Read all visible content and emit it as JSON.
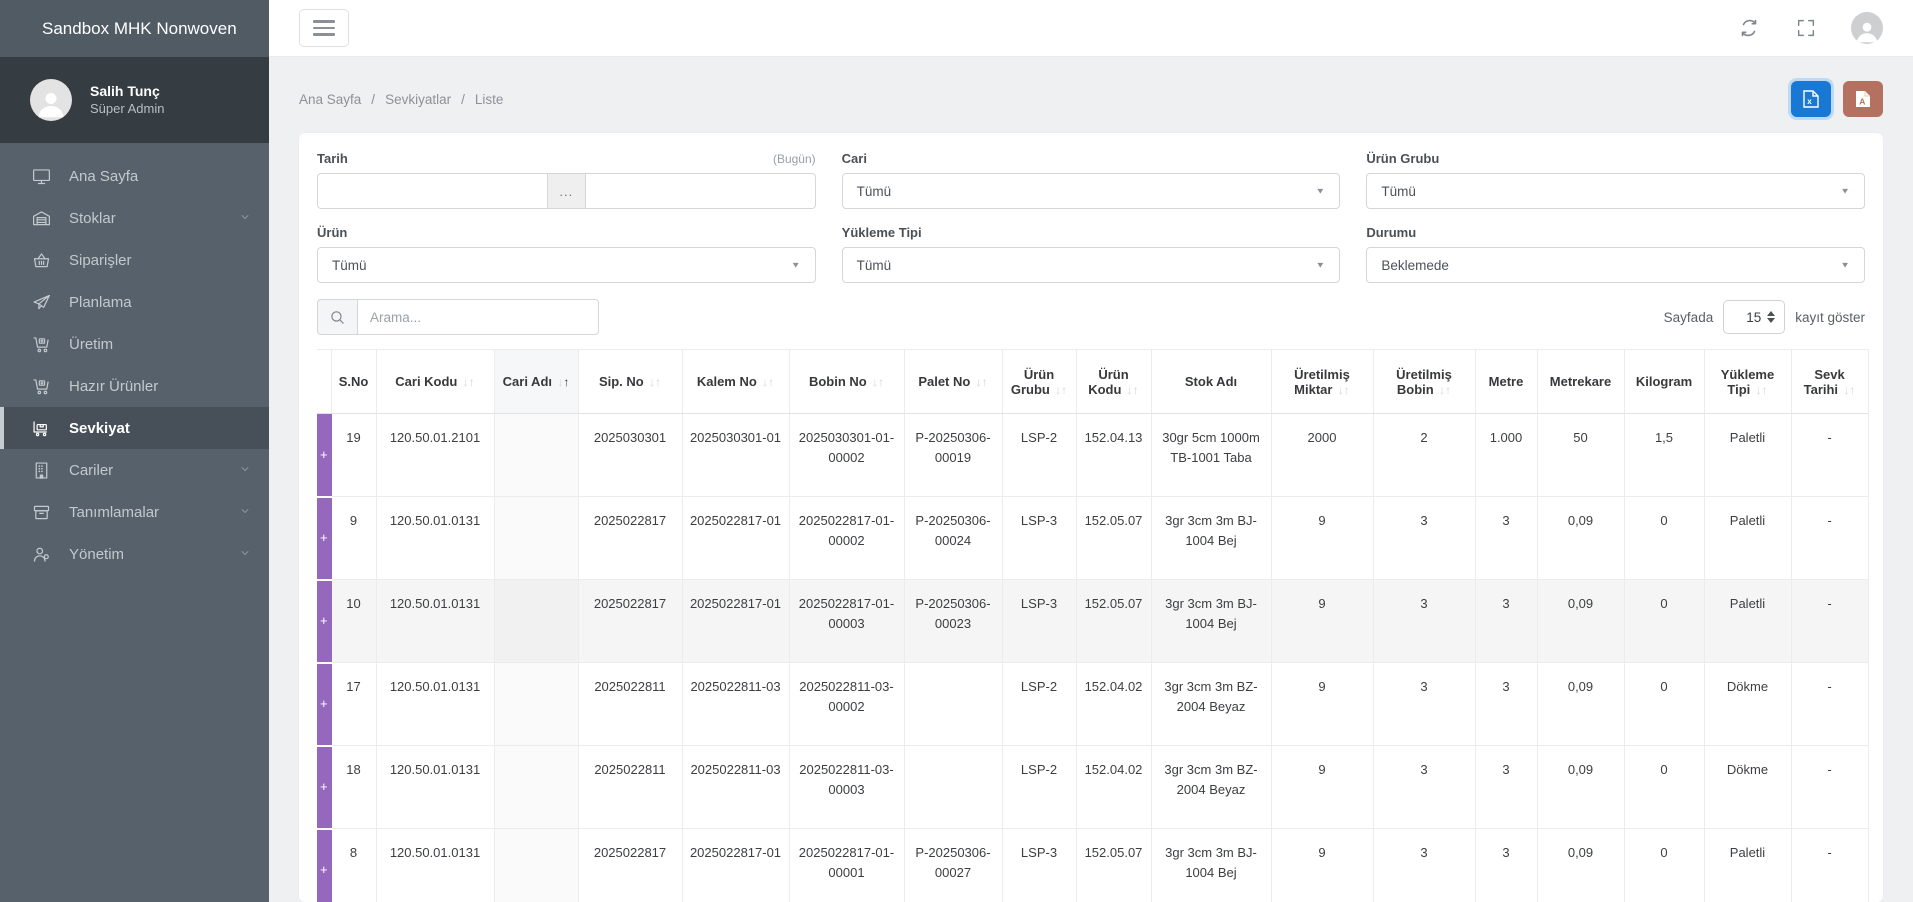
{
  "app": {
    "title": "Sandbox MHK Nonwoven"
  },
  "user": {
    "name": "Salih Tunç",
    "role": "Süper Admin"
  },
  "sidebar": {
    "items": [
      {
        "label": "Ana Sayfa",
        "icon": "monitor-icon",
        "has_children": false,
        "active": false
      },
      {
        "label": "Stoklar",
        "icon": "warehouse-icon",
        "has_children": true,
        "active": false
      },
      {
        "label": "Siparişler",
        "icon": "basket-icon",
        "has_children": false,
        "active": false
      },
      {
        "label": "Planlama",
        "icon": "paper-plane-icon",
        "has_children": false,
        "active": false
      },
      {
        "label": "Üretim",
        "icon": "cart-plus-icon",
        "has_children": false,
        "active": false
      },
      {
        "label": "Hazır Ürünler",
        "icon": "cart-plus-icon",
        "has_children": false,
        "active": false
      },
      {
        "label": "Sevkiyat",
        "icon": "trolley-icon",
        "has_children": false,
        "active": true
      },
      {
        "label": "Cariler",
        "icon": "building-icon",
        "has_children": true,
        "active": false
      },
      {
        "label": "Tanımlamalar",
        "icon": "definitions-icon",
        "has_children": true,
        "active": false
      },
      {
        "label": "Yönetim",
        "icon": "management-icon",
        "has_children": true,
        "active": false
      }
    ]
  },
  "topbar": {
    "icons": [
      "recycle-icon",
      "fullscreen-icon",
      "avatar"
    ]
  },
  "breadcrumb": {
    "items": [
      "Ana Sayfa",
      "Sevkiyatlar",
      "Liste"
    ],
    "separator": "/"
  },
  "export_buttons": {
    "excel_icon": "file-excel-icon",
    "pdf_icon": "file-pdf-icon"
  },
  "filters": {
    "tarih": {
      "label": "Tarih",
      "hint": "(Bugün)",
      "start_value": "",
      "end_value": "",
      "range_button": "..."
    },
    "cari": {
      "label": "Cari",
      "value": "Tümü"
    },
    "urun_grubu": {
      "label": "Ürün Grubu",
      "value": "Tümü"
    },
    "urun": {
      "label": "Ürün",
      "value": "Tümü"
    },
    "yukleme_tipi": {
      "label": "Yükleme Tipi",
      "value": "Tümü"
    },
    "durumu": {
      "label": "Durumu",
      "value": "Beklemede"
    }
  },
  "search": {
    "placeholder": "Arama..."
  },
  "page_size": {
    "prefix": "Sayfada",
    "value": "15",
    "suffix": "kayıt göster"
  },
  "table": {
    "expand_label": "+",
    "accent_color": "#9568bd",
    "columns": [
      {
        "key": "sno",
        "label": "S.No",
        "sortable": false
      },
      {
        "key": "cari_kodu",
        "label": "Cari Kodu",
        "sortable": true
      },
      {
        "key": "cari_adi",
        "label": "Cari Adı",
        "sortable": true,
        "sorted": true,
        "shaded": true
      },
      {
        "key": "sip_no",
        "label": "Sip. No",
        "sortable": true
      },
      {
        "key": "kalem_no",
        "label": "Kalem No",
        "sortable": true
      },
      {
        "key": "bobin_no",
        "label": "Bobin No",
        "sortable": true
      },
      {
        "key": "palet_no",
        "label": "Palet No",
        "sortable": true
      },
      {
        "key": "urun_grubu",
        "label": "Ürün Grubu",
        "sortable": true
      },
      {
        "key": "urun_kodu",
        "label": "Ürün Kodu",
        "sortable": true
      },
      {
        "key": "stok_adi",
        "label": "Stok Adı",
        "sortable": false
      },
      {
        "key": "uretilmis_miktar",
        "label": "Üretilmiş Miktar",
        "sortable": true
      },
      {
        "key": "uretilmis_bobin",
        "label": "Üretilmiş Bobin",
        "sortable": true
      },
      {
        "key": "metre",
        "label": "Metre",
        "sortable": false
      },
      {
        "key": "metrekare",
        "label": "Metrekare",
        "sortable": false
      },
      {
        "key": "kilogram",
        "label": "Kilogram",
        "sortable": false
      },
      {
        "key": "yukleme_tipi",
        "label": "Yükleme Tipi",
        "sortable": true
      },
      {
        "key": "sevk_tarihi",
        "label": "Sevk Tarihi",
        "sortable": true
      }
    ],
    "rows": [
      {
        "sno": "19",
        "cari_kodu": "120.50.01.2101",
        "cari_adi": "",
        "sip_no": "2025030301",
        "kalem_no": "2025030301-01",
        "bobin_no": "2025030301-01-00002",
        "palet_no": "P-20250306-00019",
        "urun_grubu": "LSP-2",
        "urun_kodu": "152.04.13",
        "stok_adi": "30gr 5cm 1000m TB-1001 Taba",
        "uretilmis_miktar": "2000",
        "uretilmis_bobin": "2",
        "metre": "1.000",
        "metrekare": "50",
        "kilogram": "1,5",
        "yukleme_tipi": "Paletli",
        "sevk_tarihi": "-",
        "highlighted": false
      },
      {
        "sno": "9",
        "cari_kodu": "120.50.01.0131",
        "cari_adi": "",
        "sip_no": "2025022817",
        "kalem_no": "2025022817-01",
        "bobin_no": "2025022817-01-00002",
        "palet_no": "P-20250306-00024",
        "urun_grubu": "LSP-3",
        "urun_kodu": "152.05.07",
        "stok_adi": "3gr 3cm 3m BJ-1004 Bej",
        "uretilmis_miktar": "9",
        "uretilmis_bobin": "3",
        "metre": "3",
        "metrekare": "0,09",
        "kilogram": "0",
        "yukleme_tipi": "Paletli",
        "sevk_tarihi": "-",
        "highlighted": false
      },
      {
        "sno": "10",
        "cari_kodu": "120.50.01.0131",
        "cari_adi": "",
        "sip_no": "2025022817",
        "kalem_no": "2025022817-01",
        "bobin_no": "2025022817-01-00003",
        "palet_no": "P-20250306-00023",
        "urun_grubu": "LSP-3",
        "urun_kodu": "152.05.07",
        "stok_adi": "3gr 3cm 3m BJ-1004 Bej",
        "uretilmis_miktar": "9",
        "uretilmis_bobin": "3",
        "metre": "3",
        "metrekare": "0,09",
        "kilogram": "0",
        "yukleme_tipi": "Paletli",
        "sevk_tarihi": "-",
        "highlighted": true
      },
      {
        "sno": "17",
        "cari_kodu": "120.50.01.0131",
        "cari_adi": "",
        "sip_no": "2025022811",
        "kalem_no": "2025022811-03",
        "bobin_no": "2025022811-03-00002",
        "palet_no": "",
        "urun_grubu": "LSP-2",
        "urun_kodu": "152.04.02",
        "stok_adi": "3gr 3cm 3m BZ-2004 Beyaz",
        "uretilmis_miktar": "9",
        "uretilmis_bobin": "3",
        "metre": "3",
        "metrekare": "0,09",
        "kilogram": "0",
        "yukleme_tipi": "Dökme",
        "sevk_tarihi": "-",
        "highlighted": false
      },
      {
        "sno": "18",
        "cari_kodu": "120.50.01.0131",
        "cari_adi": "",
        "sip_no": "2025022811",
        "kalem_no": "2025022811-03",
        "bobin_no": "2025022811-03-00003",
        "palet_no": "",
        "urun_grubu": "LSP-2",
        "urun_kodu": "152.04.02",
        "stok_adi": "3gr 3cm 3m BZ-2004 Beyaz",
        "uretilmis_miktar": "9",
        "uretilmis_bobin": "3",
        "metre": "3",
        "metrekare": "0,09",
        "kilogram": "0",
        "yukleme_tipi": "Dökme",
        "sevk_tarihi": "-",
        "highlighted": false
      },
      {
        "sno": "8",
        "cari_kodu": "120.50.01.0131",
        "cari_adi": "",
        "sip_no": "2025022817",
        "kalem_no": "2025022817-01",
        "bobin_no": "2025022817-01-00001",
        "palet_no": "P-20250306-00027",
        "urun_grubu": "LSP-3",
        "urun_kodu": "152.05.07",
        "stok_adi": "3gr 3cm 3m BJ-1004 Bej",
        "uretilmis_miktar": "9",
        "uretilmis_bobin": "3",
        "metre": "3",
        "metrekare": "0,09",
        "kilogram": "0",
        "yukleme_tipi": "Paletli",
        "sevk_tarihi": "-",
        "highlighted": false
      }
    ]
  }
}
